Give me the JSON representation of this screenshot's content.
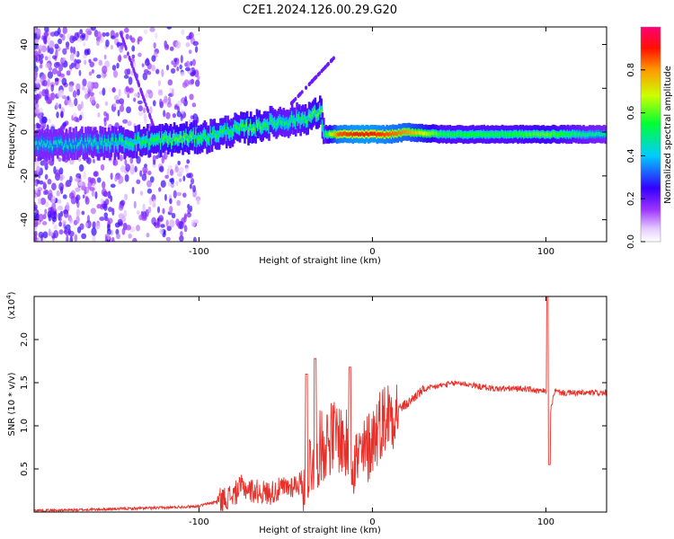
{
  "chart_data": [
    {
      "type": "heatmap",
      "title": "C2E1.2024.126.00.29.G20",
      "xlabel": "Height of straight line (km)",
      "ylabel": "Frequency (Hz)",
      "xlim": [
        -195,
        135
      ],
      "ylim": [
        -50,
        48
      ],
      "xticks": [
        -100,
        0,
        100
      ],
      "xtick_labels": [
        "-100",
        "0",
        "100"
      ],
      "yticks": [
        -40,
        -20,
        0,
        20,
        40
      ],
      "ytick_labels": [
        "-40",
        "-20",
        "0",
        "20",
        "40"
      ],
      "colorbar": {
        "label": "Normalized spectral amplitude",
        "range": [
          0.0,
          1.0
        ],
        "ticks": [
          0.0,
          0.2,
          0.4,
          0.6,
          0.8
        ],
        "tick_labels": [
          "0.0",
          "0.2",
          "0.4",
          "0.6",
          "0.8"
        ],
        "colors": [
          "#ffffff",
          "#b44dff",
          "#4400ff",
          "#00ccff",
          "#00ff33",
          "#ffff00",
          "#ff3300",
          "#ff0066"
        ]
      },
      "ridge": {
        "x": [
          -195,
          -170,
          -150,
          -130,
          -110,
          -95,
          -80,
          -70,
          -60,
          -50,
          -40,
          -30,
          -28,
          -20,
          -10,
          0,
          10,
          20,
          40,
          60,
          80,
          100,
          120,
          135
        ],
        "freq": [
          -6,
          -5,
          -5,
          -4,
          -3,
          -2,
          1,
          2,
          4,
          5,
          6,
          9,
          -1,
          -1,
          -1,
          -1,
          -1,
          0,
          -1,
          -1,
          -1,
          -1,
          -1,
          -1
        ],
        "amplitude": [
          0.45,
          0.45,
          0.5,
          0.55,
          0.6,
          0.55,
          0.55,
          0.6,
          0.55,
          0.5,
          0.55,
          0.6,
          0.5,
          0.85,
          0.9,
          0.9,
          0.85,
          0.8,
          0.55,
          0.55,
          0.55,
          0.6,
          0.5,
          0.45
        ]
      }
    },
    {
      "type": "line",
      "title": "",
      "xlabel": "Height of straight line (km)",
      "ylabel": "SNR (10 * v/v)",
      "scale_label": "(x10",
      "scale_exp": "4",
      "xlim": [
        -195,
        135
      ],
      "ylim": [
        0,
        2.5
      ],
      "xticks": [
        -100,
        0,
        100
      ],
      "xtick_labels": [
        "-100",
        "0",
        "100"
      ],
      "yticks": [
        0.5,
        1.0,
        1.5,
        2.0
      ],
      "ytick_labels": [
        "0.5",
        "1.0",
        "1.5",
        "2.0"
      ],
      "color": "#e8302a",
      "series": [
        {
          "x": [
            -195,
            -180,
            -160,
            -140,
            -120,
            -100,
            -90,
            -80,
            -75,
            -70,
            -60,
            -50,
            -40,
            -35,
            -30,
            -25,
            -20,
            -15,
            -10,
            -5,
            0,
            5,
            10,
            15,
            20,
            25,
            30,
            40,
            50,
            60,
            70,
            80,
            90,
            95,
            100,
            102,
            105,
            110,
            120,
            135
          ],
          "values": [
            0.02,
            0.02,
            0.03,
            0.04,
            0.05,
            0.07,
            0.12,
            0.2,
            0.3,
            0.25,
            0.22,
            0.28,
            0.35,
            0.6,
            0.75,
            0.85,
            0.9,
            0.75,
            0.6,
            0.65,
            0.85,
            1.05,
            1.15,
            1.2,
            1.25,
            1.35,
            1.42,
            1.47,
            1.5,
            1.46,
            1.43,
            1.43,
            1.43,
            1.4,
            1.4,
            1.1,
            1.4,
            1.38,
            1.38,
            1.38
          ]
        }
      ],
      "peaks": [
        {
          "x": -38,
          "y": 1.6
        },
        {
          "x": -33,
          "y": 1.78
        },
        {
          "x": -13,
          "y": 1.68
        },
        {
          "x": 101,
          "y": 2.5
        },
        {
          "x": 102,
          "y": 0.55
        }
      ]
    }
  ]
}
